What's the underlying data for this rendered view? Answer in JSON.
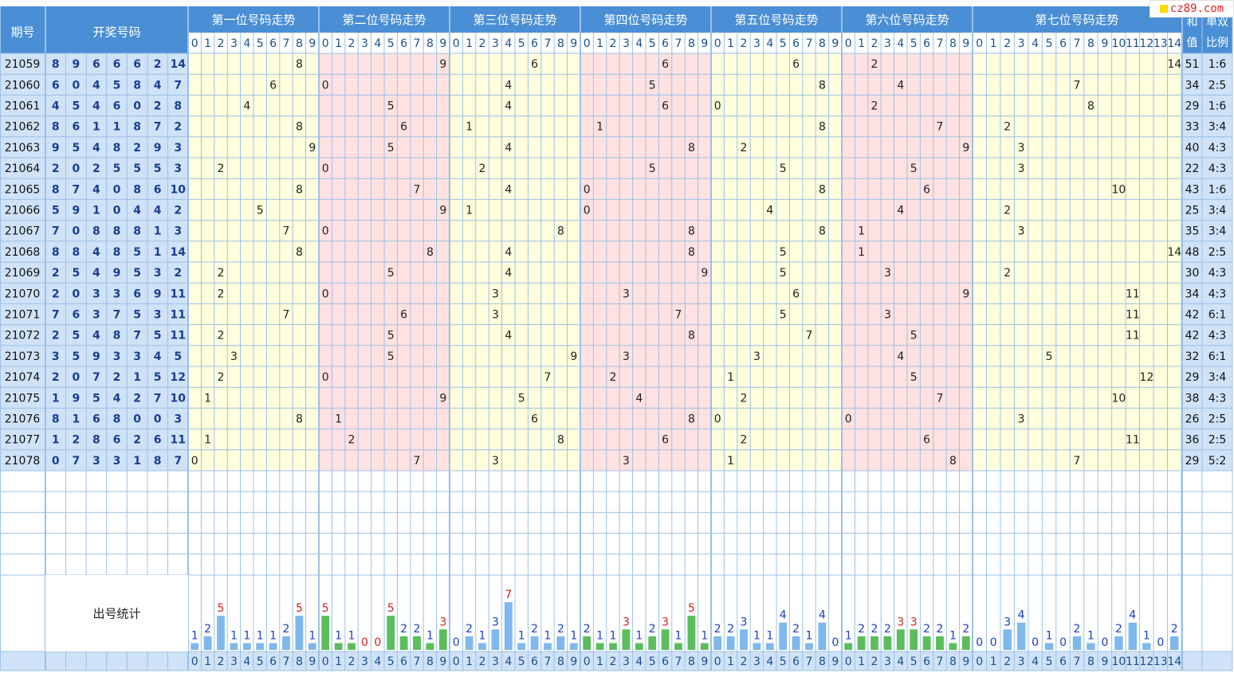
{
  "header": {
    "period": "期号",
    "draw": "开奖号码",
    "positions": [
      "第一位号码走势",
      "第二位号码走势",
      "第三位号码走势",
      "第四位号码走势",
      "第五位号码走势",
      "第六位号码走势",
      "第七位号码走势"
    ],
    "sum_l1": "和",
    "sum_l2": "值",
    "ratio_l1": "单双",
    "ratio_l2": "比例"
  },
  "stats_label": "出号统计",
  "watermark": "cz89.com",
  "colors": {
    "header_blue": "#4a8fd6",
    "header_light": "#cfe2f7",
    "yellow_zone": "#ffffdd",
    "pink_zone": "#ffe1e1",
    "grid": "#9cc0e6",
    "blue_bar": "#7fb8ec",
    "green_bar": "#5cbd5c",
    "stat_red": "#d22222",
    "stat_blue": "#1c3fbf"
  },
  "chart_data": {
    "type": "table",
    "periods": [
      "21059",
      "21060",
      "21061",
      "21062",
      "21063",
      "21064",
      "21065",
      "21066",
      "21067",
      "21068",
      "21069",
      "21070",
      "21071",
      "21072",
      "21073",
      "21074",
      "21075",
      "21076",
      "21077",
      "21078"
    ],
    "draws": [
      [
        "8",
        "9",
        "6",
        "6",
        "6",
        "2",
        "14"
      ],
      [
        "6",
        "0",
        "4",
        "5",
        "8",
        "4",
        "7"
      ],
      [
        "4",
        "5",
        "4",
        "6",
        "0",
        "2",
        "8"
      ],
      [
        "8",
        "6",
        "1",
        "1",
        "8",
        "7",
        "2"
      ],
      [
        "9",
        "5",
        "4",
        "8",
        "2",
        "9",
        "3"
      ],
      [
        "2",
        "0",
        "2",
        "5",
        "5",
        "5",
        "3"
      ],
      [
        "8",
        "7",
        "4",
        "0",
        "8",
        "6",
        "10"
      ],
      [
        "5",
        "9",
        "1",
        "0",
        "4",
        "4",
        "2"
      ],
      [
        "7",
        "0",
        "8",
        "8",
        "8",
        "1",
        "3"
      ],
      [
        "8",
        "8",
        "4",
        "8",
        "5",
        "1",
        "14"
      ],
      [
        "2",
        "5",
        "4",
        "9",
        "5",
        "3",
        "2"
      ],
      [
        "2",
        "0",
        "3",
        "3",
        "6",
        "9",
        "11"
      ],
      [
        "7",
        "6",
        "3",
        "7",
        "5",
        "3",
        "11"
      ],
      [
        "2",
        "5",
        "4",
        "8",
        "7",
        "5",
        "11"
      ],
      [
        "3",
        "5",
        "9",
        "3",
        "3",
        "4",
        "5"
      ],
      [
        "2",
        "0",
        "7",
        "2",
        "1",
        "5",
        "12"
      ],
      [
        "1",
        "9",
        "5",
        "4",
        "2",
        "7",
        "10"
      ],
      [
        "8",
        "1",
        "6",
        "8",
        "0",
        "0",
        "3"
      ],
      [
        "1",
        "2",
        "8",
        "6",
        "2",
        "6",
        "11"
      ],
      [
        "0",
        "7",
        "3",
        "3",
        "1",
        "8",
        "7"
      ]
    ],
    "sums": [
      "51",
      "34",
      "29",
      "33",
      "40",
      "22",
      "43",
      "25",
      "35",
      "48",
      "30",
      "34",
      "42",
      "42",
      "32",
      "29",
      "38",
      "26",
      "36",
      "29"
    ],
    "ratios": [
      "1:6",
      "2:5",
      "1:6",
      "3:4",
      "4:3",
      "4:3",
      "1:6",
      "3:4",
      "3:4",
      "2:5",
      "4:3",
      "4:3",
      "6:1",
      "4:3",
      "6:1",
      "3:4",
      "4:3",
      "2:5",
      "2:5",
      "5:2"
    ],
    "digit_labels": [
      [
        "0",
        "1",
        "2",
        "3",
        "4",
        "5",
        "6",
        "7",
        "8",
        "9"
      ],
      [
        "0",
        "1",
        "2",
        "3",
        "4",
        "5",
        "6",
        "7",
        "8",
        "9"
      ],
      [
        "0",
        "1",
        "2",
        "3",
        "4",
        "5",
        "6",
        "7",
        "8",
        "9"
      ],
      [
        "0",
        "1",
        "2",
        "3",
        "4",
        "5",
        "6",
        "7",
        "8",
        "9"
      ],
      [
        "0",
        "1",
        "2",
        "3",
        "4",
        "5",
        "6",
        "7",
        "8",
        "9"
      ],
      [
        "0",
        "1",
        "2",
        "3",
        "4",
        "5",
        "6",
        "7",
        "8",
        "9"
      ],
      [
        "0",
        "1",
        "2",
        "3",
        "4",
        "5",
        "6",
        "7",
        "8",
        "9",
        "10",
        "11",
        "12",
        "13",
        "14"
      ]
    ],
    "stats": [
      [
        "1",
        "2",
        "5",
        "1",
        "1",
        "1",
        "1",
        "2",
        "5",
        "1"
      ],
      [
        "5",
        "1",
        "1",
        "0",
        "0",
        "5",
        "2",
        "2",
        "1",
        "3"
      ],
      [
        "0",
        "2",
        "1",
        "3",
        "7",
        "1",
        "2",
        "1",
        "2",
        "1"
      ],
      [
        "2",
        "1",
        "1",
        "3",
        "1",
        "2",
        "3",
        "1",
        "5",
        "1"
      ],
      [
        "2",
        "2",
        "3",
        "1",
        "1",
        "4",
        "2",
        "1",
        "4",
        "0"
      ],
      [
        "1",
        "2",
        "2",
        "2",
        "3",
        "3",
        "2",
        "2",
        "1",
        "2"
      ],
      [
        "0",
        "0",
        "3",
        "4",
        "0",
        "1",
        "0",
        "2",
        "1",
        "0",
        "2",
        "4",
        "1",
        "0",
        "2"
      ]
    ]
  }
}
